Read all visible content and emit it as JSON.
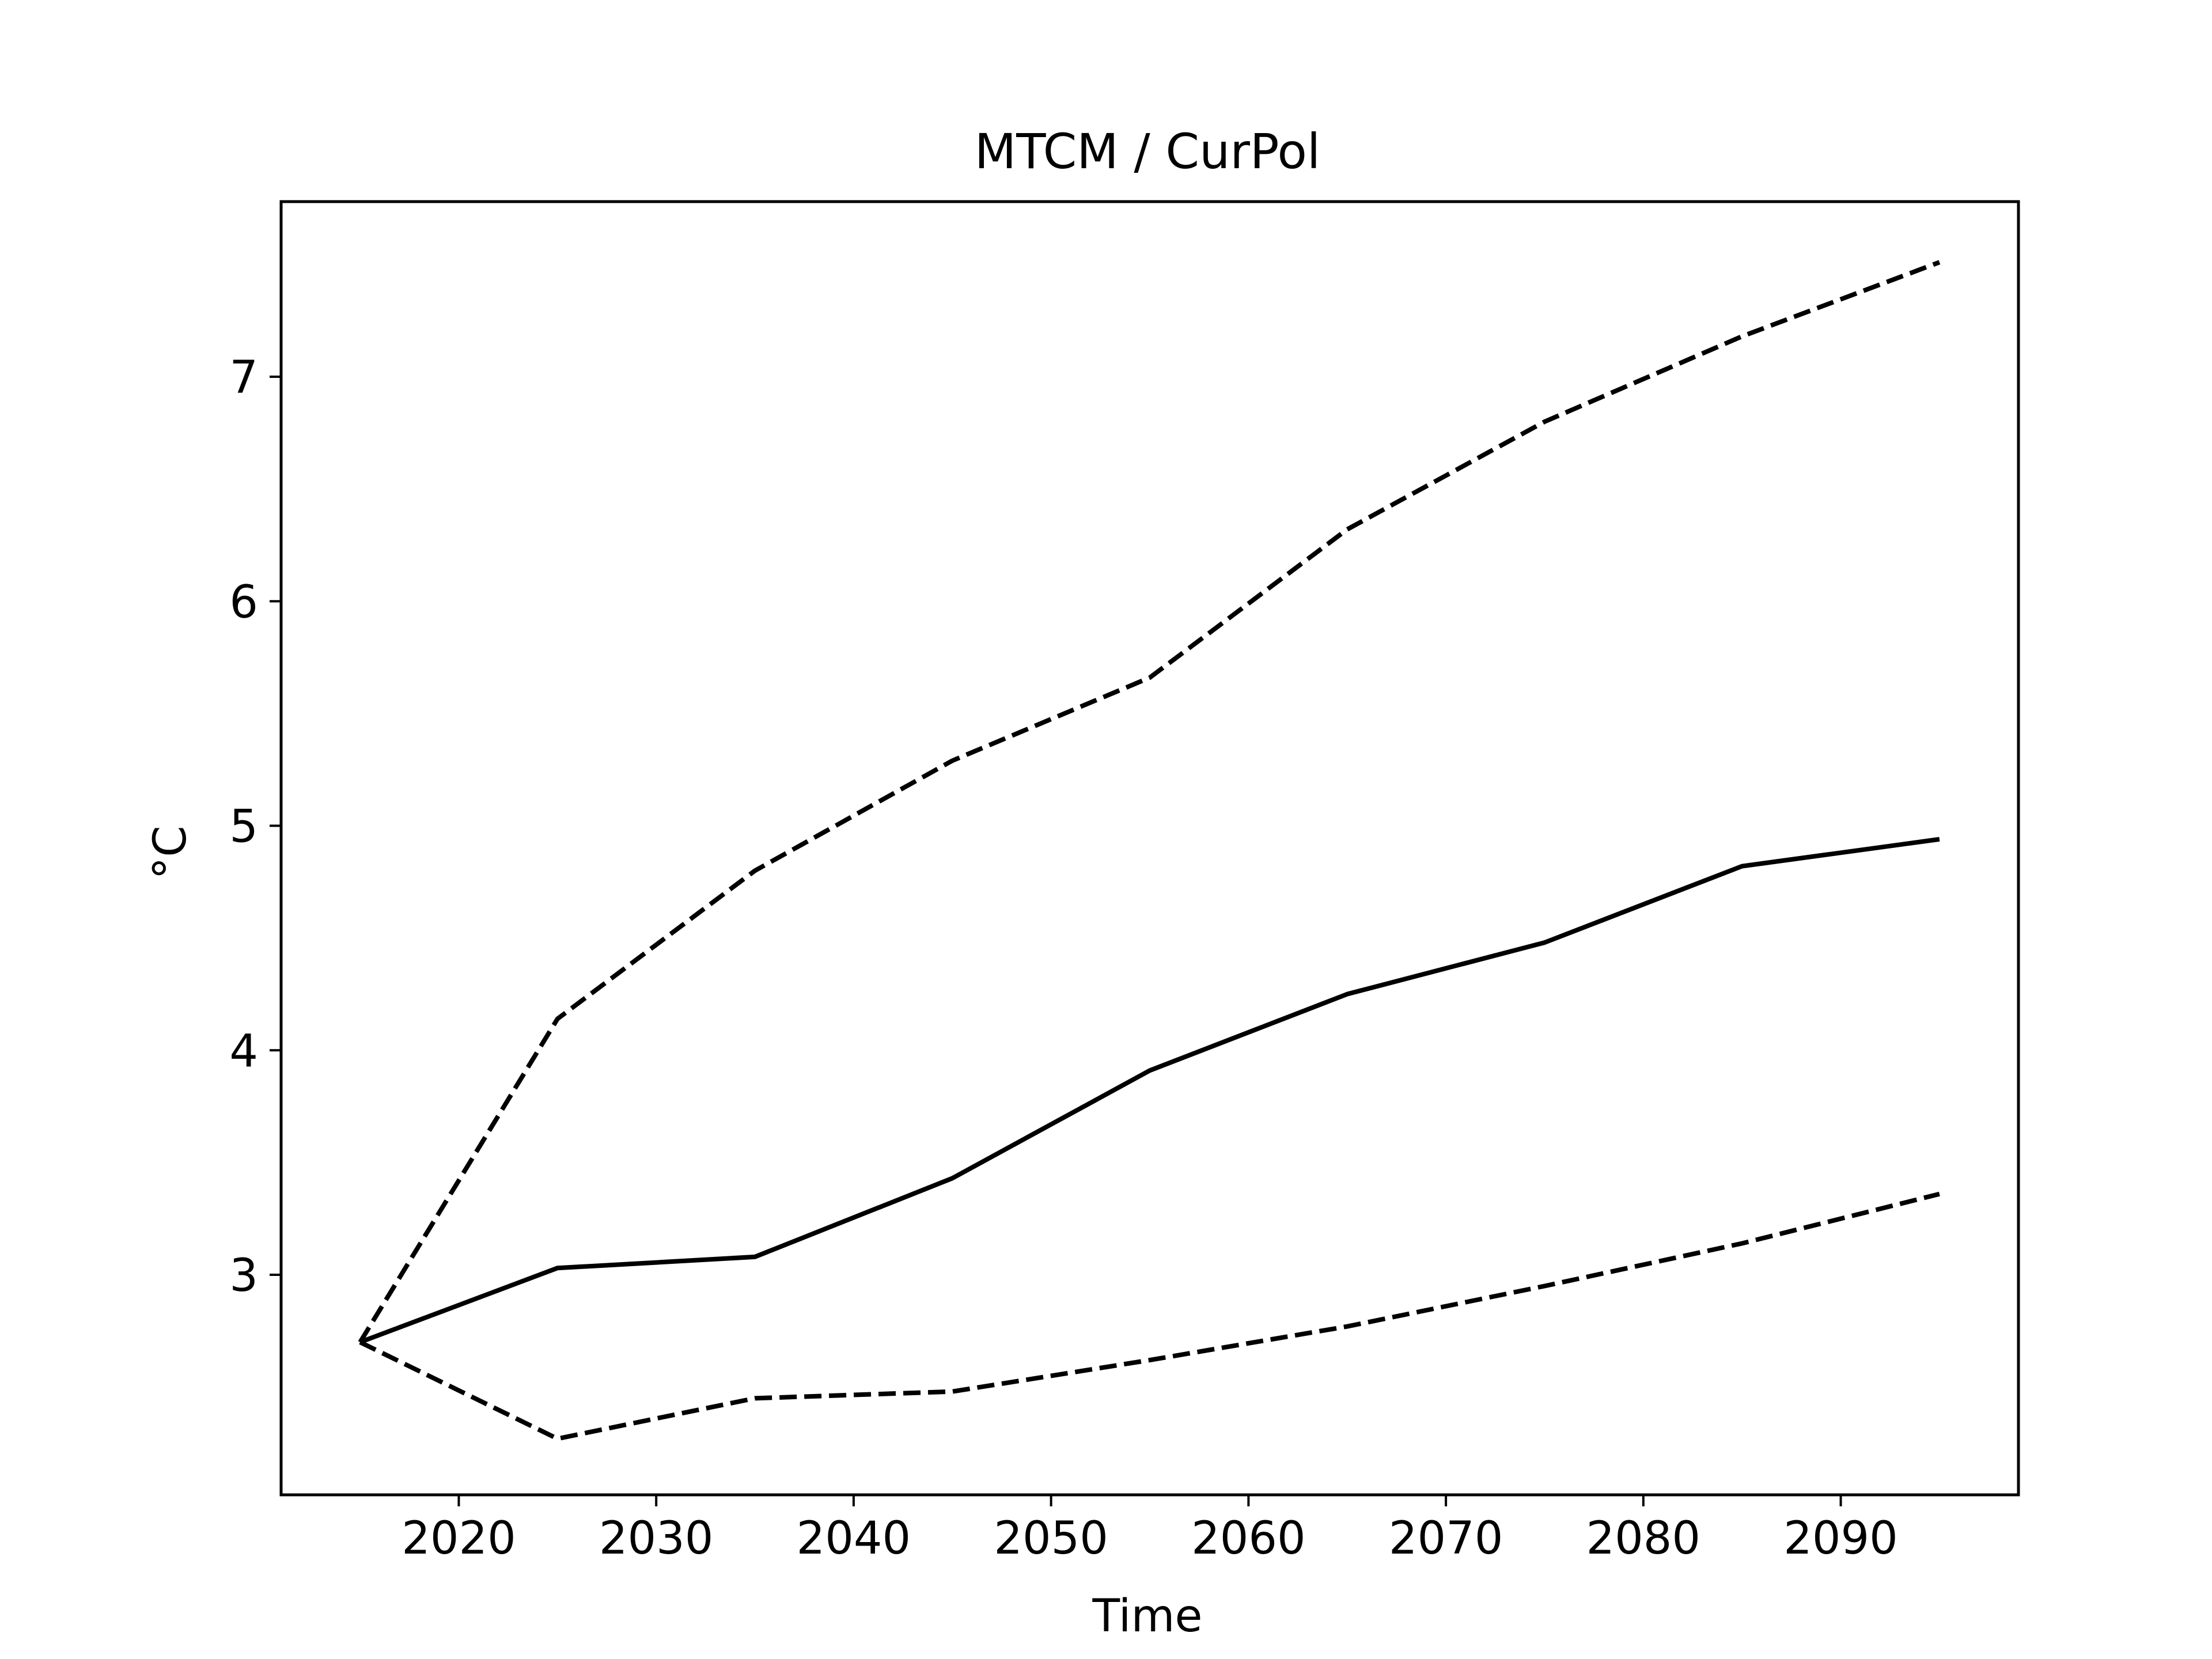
{
  "chart_data": {
    "type": "line",
    "title": "MTCM / CurPol",
    "xlabel": "Time",
    "ylabel": "°C",
    "xlim": [
      2011,
      2099
    ],
    "ylim": [
      2.02,
      7.78
    ],
    "xticks": [
      2020,
      2030,
      2040,
      2050,
      2060,
      2070,
      2080,
      2090
    ],
    "yticks": [
      3,
      4,
      5,
      6,
      7
    ],
    "xtick_labels": [
      "2020",
      "2030",
      "2040",
      "2050",
      "2060",
      "2070",
      "2080",
      "2090"
    ],
    "ytick_labels": [
      "3",
      "4",
      "5",
      "6",
      "7"
    ],
    "grid": false,
    "legend": false,
    "x": [
      2015,
      2025,
      2035,
      2045,
      2055,
      2065,
      2075,
      2085,
      2095
    ],
    "series": [
      {
        "style": "solid",
        "color": "#000000",
        "values": [
          2.7,
          3.03,
          3.08,
          3.43,
          3.91,
          4.25,
          4.48,
          4.82,
          4.94
        ]
      },
      {
        "style": "dashed",
        "color": "#000000",
        "values": [
          2.7,
          4.14,
          4.8,
          5.29,
          5.66,
          6.32,
          6.8,
          7.18,
          7.51
        ]
      },
      {
        "style": "dashed",
        "color": "#000000",
        "values": [
          2.7,
          2.27,
          2.45,
          2.48,
          2.62,
          2.77,
          2.95,
          3.14,
          3.36
        ]
      }
    ]
  }
}
